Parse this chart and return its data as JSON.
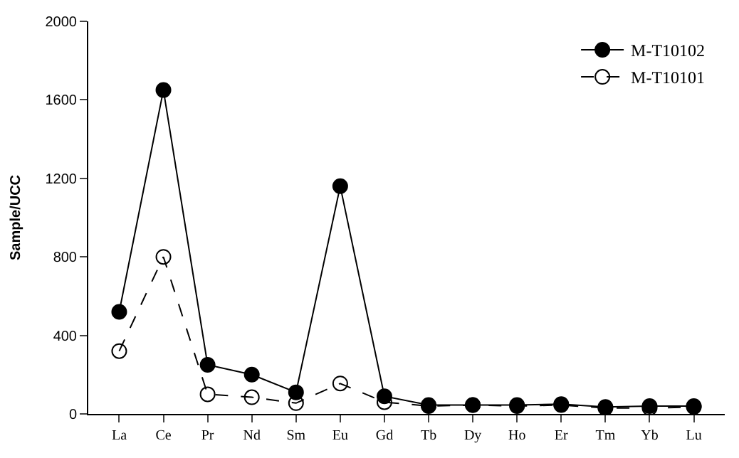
{
  "chart_data": {
    "type": "line",
    "ylabel": "Sample/UCC",
    "categories": [
      "La",
      "Ce",
      "Pr",
      "Nd",
      "Sm",
      "Eu",
      "Gd",
      "Tb",
      "Dy",
      "Ho",
      "Er",
      "Tm",
      "Yb",
      "Lu"
    ],
    "series": [
      {
        "name": "M-T10102",
        "color": "#000000",
        "marker": "circle",
        "line_style": "solid",
        "values": [
          520,
          1650,
          250,
          200,
          110,
          1160,
          90,
          45,
          45,
          45,
          50,
          35,
          40,
          40
        ]
      },
      {
        "name": "M-T10101",
        "color": "#000000",
        "marker": "circle-open",
        "line_style": "dashed",
        "values": [
          320,
          800,
          100,
          85,
          55,
          155,
          60,
          40,
          45,
          40,
          45,
          30,
          30,
          35
        ]
      }
    ],
    "ylim": [
      0,
      2000
    ],
    "yticks": [
      0,
      400,
      800,
      1200,
      1600,
      2000
    ],
    "legend": "top right"
  }
}
